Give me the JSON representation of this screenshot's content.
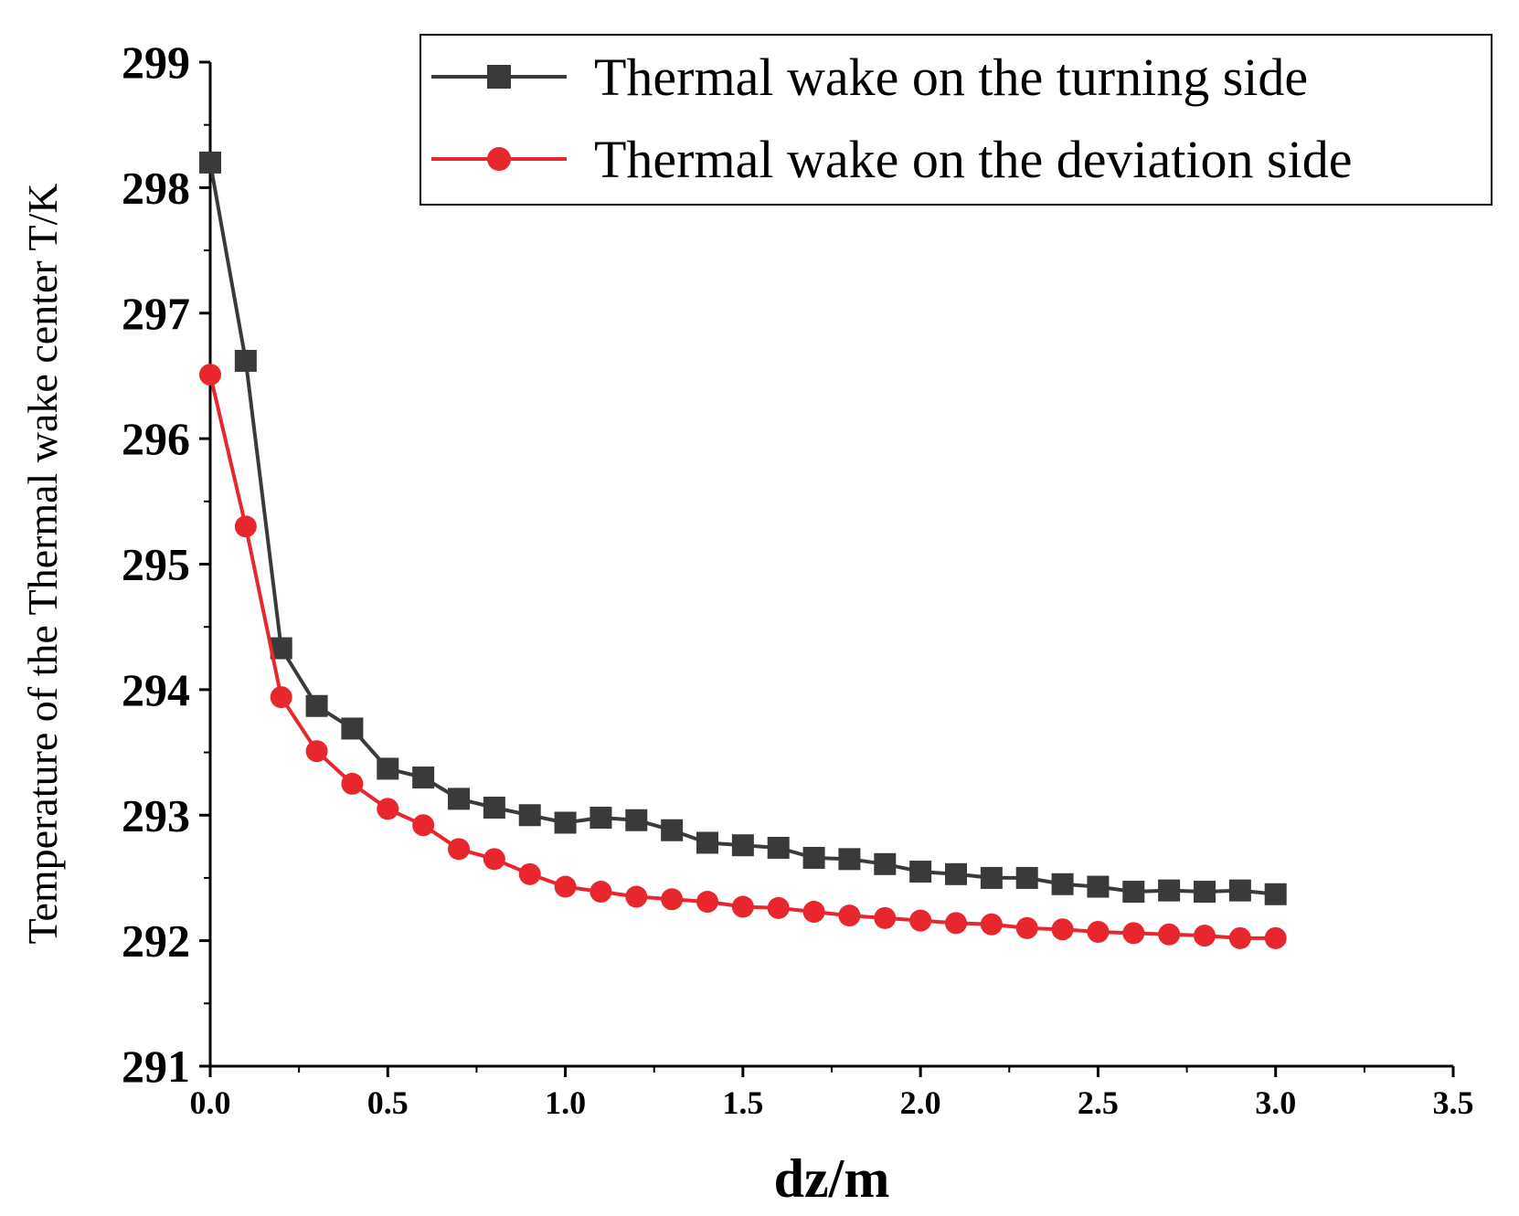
{
  "chart_data": {
    "type": "line",
    "title": "",
    "xlabel": "dz/m",
    "ylabel": "Temperature of the Thermal wake center T/K",
    "xlim": [
      0,
      3.5
    ],
    "ylim": [
      291,
      299
    ],
    "x_ticks": [
      0.0,
      0.5,
      1.0,
      1.5,
      2.0,
      2.5,
      3.0,
      3.5
    ],
    "x_tick_labels": [
      "0.0",
      "0.5",
      "1.0",
      "1.5",
      "2.0",
      "2.5",
      "3.0",
      "3.5"
    ],
    "y_ticks": [
      291,
      292,
      293,
      294,
      295,
      296,
      297,
      298,
      299
    ],
    "y_tick_labels": [
      "291",
      "292",
      "293",
      "294",
      "295",
      "296",
      "297",
      "298",
      "299"
    ],
    "legend_position": "top-right",
    "x": [
      0.0,
      0.1,
      0.2,
      0.3,
      0.4,
      0.5,
      0.6,
      0.7,
      0.8,
      0.9,
      1.0,
      1.1,
      1.2,
      1.3,
      1.4,
      1.5,
      1.6,
      1.7,
      1.8,
      1.9,
      2.0,
      2.1,
      2.2,
      2.3,
      2.4,
      2.5,
      2.6,
      2.7,
      2.8,
      2.9,
      3.0
    ],
    "series": [
      {
        "name": "Thermal wake on the turning side",
        "color": "#3a3a3a",
        "marker": "square",
        "values": [
          298.2,
          296.62,
          294.33,
          293.87,
          293.69,
          293.37,
          293.3,
          293.13,
          293.06,
          293.0,
          292.94,
          292.98,
          292.96,
          292.88,
          292.78,
          292.76,
          292.74,
          292.66,
          292.65,
          292.61,
          292.55,
          292.53,
          292.5,
          292.5,
          292.45,
          292.43,
          292.39,
          292.4,
          292.39,
          292.4,
          292.37
        ]
      },
      {
        "name": "Thermal wake on the deviation side",
        "color": "#e8262d",
        "marker": "circle",
        "values": [
          296.51,
          295.3,
          293.94,
          293.51,
          293.25,
          293.05,
          292.92,
          292.73,
          292.65,
          292.53,
          292.43,
          292.39,
          292.35,
          292.33,
          292.31,
          292.27,
          292.26,
          292.23,
          292.2,
          292.18,
          292.16,
          292.14,
          292.13,
          292.1,
          292.09,
          292.07,
          292.06,
          292.05,
          292.04,
          292.02,
          292.02
        ]
      }
    ]
  }
}
